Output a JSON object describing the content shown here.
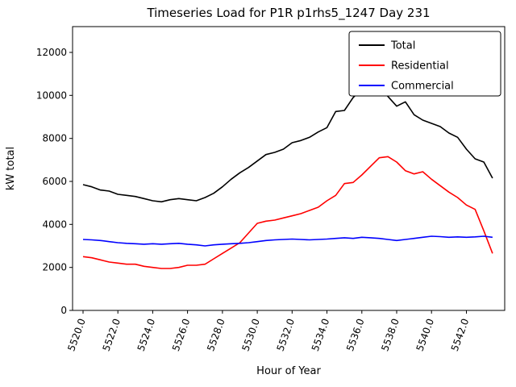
{
  "figure": {
    "background": "#ffffff"
  },
  "chart_data": {
    "type": "line",
    "title": "Timeseries Load for P1R p1rhs5_1247  Day 231",
    "xlabel": "Hour of Year",
    "ylabel": "kW total",
    "xlim": [
      5519.4,
      5544.2
    ],
    "ylim": [
      0,
      13200
    ],
    "grid": false,
    "legend_position": "upper right",
    "x_tick_values": [
      5520,
      5522,
      5524,
      5526,
      5528,
      5530,
      5532,
      5534,
      5536,
      5538,
      5540,
      5542
    ],
    "x_tick_labels": [
      "5520.0",
      "5522.0",
      "5524.0",
      "5526.0",
      "5528.0",
      "5530.0",
      "5532.0",
      "5534.0",
      "5536.0",
      "5538.0",
      "5540.0",
      "5542.0"
    ],
    "y_tick_values": [
      0,
      2000,
      4000,
      6000,
      8000,
      10000,
      12000
    ],
    "y_tick_labels": [
      "0",
      "2000",
      "4000",
      "6000",
      "8000",
      "10000",
      "12000"
    ],
    "x": [
      5520.0,
      5520.5,
      5521.0,
      5521.5,
      5522.0,
      5522.5,
      5523.0,
      5523.5,
      5524.0,
      5524.5,
      5525.0,
      5525.5,
      5526.0,
      5526.5,
      5527.0,
      5527.5,
      5528.0,
      5528.5,
      5529.0,
      5529.5,
      5530.0,
      5530.5,
      5531.0,
      5531.5,
      5532.0,
      5532.5,
      5533.0,
      5533.5,
      5534.0,
      5534.5,
      5535.0,
      5535.5,
      5536.0,
      5536.5,
      5537.0,
      5537.5,
      5538.0,
      5538.5,
      5539.0,
      5539.5,
      5540.0,
      5540.5,
      5541.0,
      5541.5,
      5542.0,
      5542.5,
      5543.0,
      5543.5
    ],
    "series": [
      {
        "name": "Total",
        "color": "#000000",
        "values": [
          5850,
          5750,
          5600,
          5550,
          5400,
          5350,
          5300,
          5200,
          5100,
          5050,
          5150,
          5200,
          5150,
          5100,
          5250,
          5450,
          5750,
          6100,
          6400,
          6650,
          6950,
          7250,
          7350,
          7500,
          7800,
          7900,
          8050,
          8300,
          8500,
          9250,
          9300,
          9900,
          10300,
          10500,
          10400,
          9950,
          9500,
          9700,
          9100,
          8850,
          8700,
          8550,
          8250,
          8050,
          7500,
          7050,
          6900,
          6150
        ]
      },
      {
        "name": "Residential",
        "color": "#ff0000",
        "values": [
          2500,
          2450,
          2350,
          2250,
          2200,
          2150,
          2150,
          2050,
          2000,
          1950,
          1950,
          2000,
          2100,
          2100,
          2150,
          2400,
          2650,
          2900,
          3150,
          3600,
          4050,
          4150,
          4200,
          4300,
          4400,
          4500,
          4650,
          4800,
          5100,
          5350,
          5900,
          5950,
          6300,
          6700,
          7100,
          7150,
          6900,
          6500,
          6350,
          6450,
          6100,
          5800,
          5500,
          5250,
          4900,
          4700,
          3700,
          2650
        ]
      },
      {
        "name": "Commercial",
        "color": "#0000ff",
        "values": [
          3300,
          3280,
          3250,
          3200,
          3150,
          3120,
          3100,
          3080,
          3100,
          3080,
          3100,
          3120,
          3080,
          3050,
          3000,
          3050,
          3080,
          3100,
          3120,
          3150,
          3200,
          3250,
          3280,
          3300,
          3320,
          3300,
          3280,
          3300,
          3320,
          3350,
          3380,
          3350,
          3400,
          3380,
          3350,
          3300,
          3250,
          3300,
          3350,
          3400,
          3450,
          3430,
          3400,
          3420,
          3400,
          3420,
          3450,
          3400
        ]
      }
    ]
  }
}
